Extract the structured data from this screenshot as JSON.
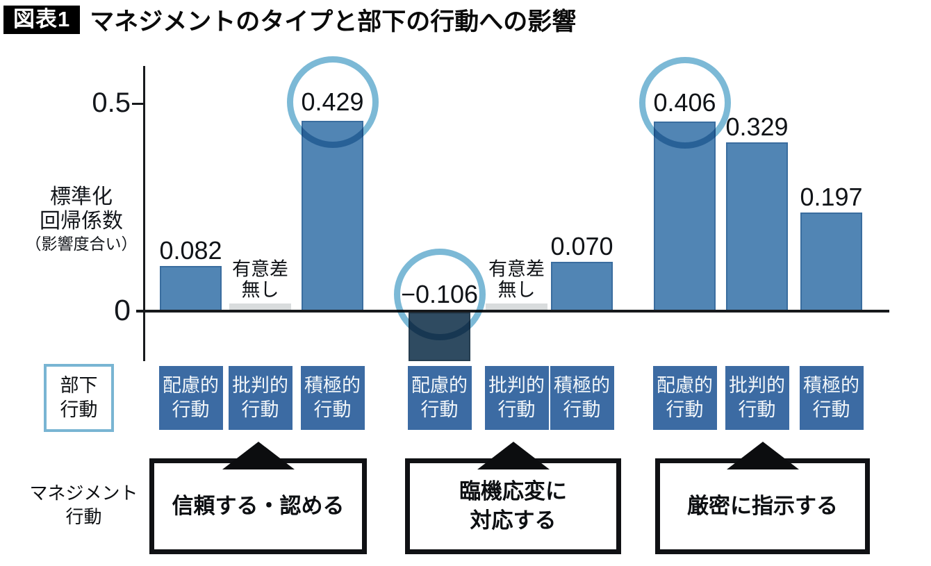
{
  "title": {
    "badge": "図表1",
    "text": "マネジメントのタイプと部下の行動への影響"
  },
  "y_axis": {
    "top_tick": "0.5",
    "zero_tick": "0",
    "label_lines": [
      "標準化",
      "回帰係数",
      "（影響度合い）"
    ]
  },
  "legends": {
    "subordinate_lines": [
      "部下",
      "行動"
    ],
    "management_lines": [
      "マネジメント",
      "行動"
    ]
  },
  "chart_data": {
    "type": "bar",
    "title": "マネジメントのタイプと部下の行動への影響",
    "ylabel": "標準化回帰係数（影響度合い）",
    "y_ticks": [
      0,
      0.5
    ],
    "ylim": [
      -0.15,
      0.6
    ],
    "grid": false,
    "legend_position": "none",
    "categories": [
      "配慮的行動",
      "批判的行動",
      "積極的行動"
    ],
    "category_lines": [
      [
        "配慮的",
        "行動"
      ],
      [
        "批判的",
        "行動"
      ],
      [
        "積極的",
        "行動"
      ]
    ],
    "not_significant_lines": [
      "有意差",
      "無し"
    ],
    "groups": [
      {
        "management_label": "信頼する・認める",
        "management_lines": [
          "信頼する・認める"
        ],
        "bars": [
          {
            "category": "配慮的行動",
            "value": 0.082,
            "label": "0.082",
            "note": null,
            "circled": false
          },
          {
            "category": "批判的行動",
            "value": null,
            "label": null,
            "note": "有意差無し",
            "circled": false
          },
          {
            "category": "積極的行動",
            "value": 0.429,
            "label": "0.429",
            "note": null,
            "circled": true
          }
        ]
      },
      {
        "management_label": "臨機応変に対応する",
        "management_lines": [
          "臨機応変に",
          "対応する"
        ],
        "bars": [
          {
            "category": "配慮的行動",
            "value": -0.106,
            "label": "−0.106",
            "note": null,
            "circled": true
          },
          {
            "category": "批判的行動",
            "value": null,
            "label": null,
            "note": "有意差無し",
            "circled": false
          },
          {
            "category": "積極的行動",
            "value": 0.07,
            "label": "0.070",
            "note": null,
            "circled": false
          }
        ]
      },
      {
        "management_label": "厳密に指示する",
        "management_lines": [
          "厳密に指示する"
        ],
        "bars": [
          {
            "category": "配慮的行動",
            "value": 0.406,
            "label": "0.406",
            "note": null,
            "circled": true
          },
          {
            "category": "批判的行動",
            "value": 0.329,
            "label": "0.329",
            "note": null,
            "circled": false
          },
          {
            "category": "積極的行動",
            "value": 0.197,
            "label": "0.197",
            "note": null,
            "circled": false
          }
        ]
      }
    ],
    "colors": {
      "bar": "#5185b4",
      "bar_border": "#3a6d9f",
      "negative_bar": "#2f4b61",
      "negative_bar_border": "#253d4f",
      "ns_bar": "#d9dcdd",
      "category_box": "#3c6ba3",
      "circle_ring": "#7cb9d6",
      "legend_border": "#79b5d3",
      "axis": "#17191c"
    }
  }
}
